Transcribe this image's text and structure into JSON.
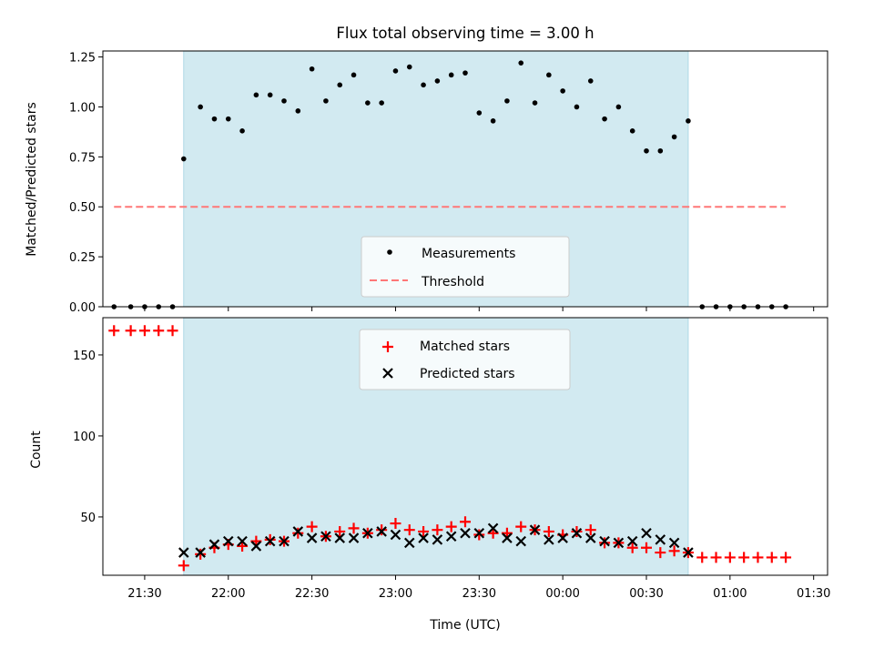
{
  "chart_data": [
    {
      "type": "scatter",
      "title": "Flux total observing time = 3.00 h",
      "xlabel": "",
      "ylabel": "Matched/Predicted stars",
      "ylim": [
        0,
        1.28
      ],
      "yticks": [
        "0.00",
        "0.25",
        "0.50",
        "0.75",
        "1.00",
        "1.25"
      ],
      "ytick_values": [
        0,
        0.25,
        0.5,
        0.75,
        1.0,
        1.25
      ],
      "shaded_interval": [
        "21:44",
        "00:45"
      ],
      "shade_color": "#add8e6",
      "legend": {
        "placement": "lower-center",
        "entries": [
          "Measurements",
          "Threshold"
        ]
      },
      "threshold": {
        "name": "Threshold",
        "y": 0.5,
        "x_range": [
          "21:19",
          "01:20"
        ],
        "color": "#ff7777"
      },
      "series": [
        {
          "name": "Measurements",
          "color": "#000000",
          "x": [
            "21:19",
            "21:25",
            "21:30",
            "21:35",
            "21:40",
            "21:44",
            "21:50",
            "21:55",
            "22:00",
            "22:05",
            "22:10",
            "22:15",
            "22:20",
            "22:25",
            "22:30",
            "22:35",
            "22:40",
            "22:45",
            "22:50",
            "22:55",
            "23:00",
            "23:05",
            "23:10",
            "23:15",
            "23:20",
            "23:25",
            "23:30",
            "23:35",
            "23:40",
            "23:45",
            "23:50",
            "23:55",
            "00:00",
            "00:05",
            "00:10",
            "00:15",
            "00:20",
            "00:25",
            "00:30",
            "00:35",
            "00:40",
            "00:45",
            "00:50",
            "00:55",
            "01:00",
            "01:05",
            "01:10",
            "01:15",
            "01:20"
          ],
          "values": [
            0,
            0,
            0,
            0,
            0,
            0.74,
            1.0,
            0.94,
            0.94,
            0.88,
            1.06,
            1.06,
            1.03,
            0.98,
            1.19,
            1.03,
            1.11,
            1.16,
            1.02,
            1.02,
            1.18,
            1.2,
            1.11,
            1.13,
            1.16,
            1.17,
            0.97,
            0.93,
            1.03,
            1.22,
            1.02,
            1.16,
            1.08,
            1.0,
            1.13,
            0.94,
            1.0,
            0.88,
            0.78,
            0.78,
            0.85,
            0.93,
            0,
            0,
            0,
            0,
            0,
            0,
            0
          ]
        }
      ]
    },
    {
      "type": "scatter",
      "xlabel": "Time (UTC)",
      "ylabel": "Count",
      "ylim": [
        14,
        173
      ],
      "yticks": [
        "50",
        "100",
        "150"
      ],
      "ytick_values": [
        50,
        100,
        150
      ],
      "xticks": [
        "21:30",
        "22:00",
        "22:30",
        "23:00",
        "23:30",
        "00:00",
        "00:30",
        "01:00",
        "01:30"
      ],
      "shaded_interval": [
        "21:44",
        "00:45"
      ],
      "shade_color": "#add8e6",
      "legend": {
        "placement": "upper-center",
        "entries": [
          "Matched stars",
          "Predicted stars"
        ]
      },
      "series": [
        {
          "name": "Matched stars",
          "marker": "plus",
          "color": "#ff0000",
          "x": [
            "21:19",
            "21:25",
            "21:30",
            "21:35",
            "21:40",
            "21:44",
            "21:50",
            "21:55",
            "22:00",
            "22:05",
            "22:10",
            "22:15",
            "22:20",
            "22:25",
            "22:30",
            "22:35",
            "22:40",
            "22:45",
            "22:50",
            "22:55",
            "23:00",
            "23:05",
            "23:10",
            "23:15",
            "23:20",
            "23:25",
            "23:30",
            "23:35",
            "23:40",
            "23:45",
            "23:50",
            "23:55",
            "00:00",
            "00:05",
            "00:10",
            "00:15",
            "00:20",
            "00:25",
            "00:30",
            "00:35",
            "00:40",
            "00:45",
            "00:50",
            "00:55",
            "01:00",
            "01:05",
            "01:10",
            "01:15",
            "01:20"
          ],
          "values": [
            165,
            165,
            165,
            165,
            165,
            20,
            27,
            31,
            33,
            32,
            35,
            36,
            35,
            40,
            44,
            38,
            41,
            43,
            40,
            42,
            46,
            42,
            41,
            42,
            44,
            47,
            39,
            40,
            40,
            44,
            42,
            41,
            39,
            41,
            42,
            34,
            34,
            31,
            31,
            28,
            29,
            28,
            25,
            25,
            25,
            25,
            25,
            25,
            25
          ]
        },
        {
          "name": "Predicted stars",
          "marker": "x",
          "color": "#000000",
          "x": [
            "21:44",
            "21:50",
            "21:55",
            "22:00",
            "22:05",
            "22:10",
            "22:15",
            "22:20",
            "22:25",
            "22:30",
            "22:35",
            "22:40",
            "22:45",
            "22:50",
            "22:55",
            "23:00",
            "23:05",
            "23:10",
            "23:15",
            "23:20",
            "23:25",
            "23:30",
            "23:35",
            "23:40",
            "23:45",
            "23:50",
            "23:55",
            "00:00",
            "00:05",
            "00:10",
            "00:15",
            "00:20",
            "00:25",
            "00:30",
            "00:35",
            "00:40",
            "00:45"
          ],
          "values": [
            28,
            28,
            33,
            35,
            35,
            32,
            35,
            35,
            41,
            37,
            38,
            37,
            37,
            40,
            41,
            39,
            34,
            37,
            36,
            38,
            40,
            40,
            43,
            37,
            35,
            42,
            36,
            37,
            40,
            37,
            35,
            34,
            35,
            40,
            36,
            34,
            28
          ]
        }
      ]
    }
  ]
}
